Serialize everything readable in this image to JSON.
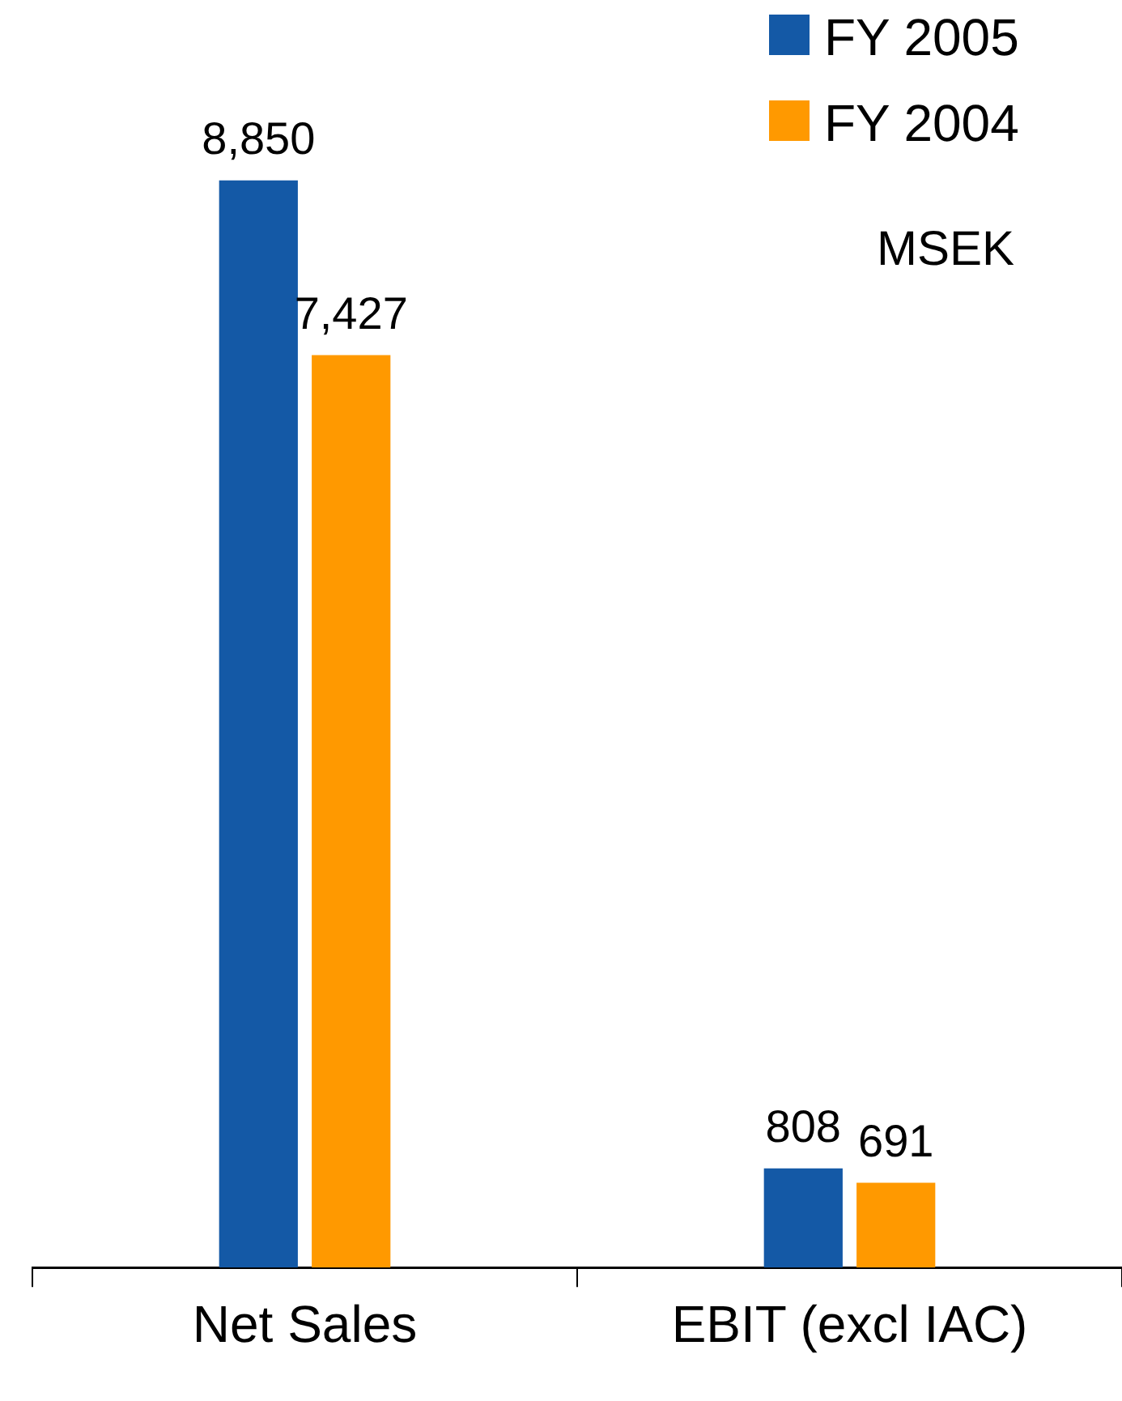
{
  "chart_data": {
    "type": "bar",
    "categories": [
      "Net Sales",
      "EBIT (excl IAC)"
    ],
    "series": [
      {
        "name": "FY 2005",
        "color": "#1459a6",
        "values": [
          8850,
          808
        ],
        "value_labels": [
          "8,850",
          "808"
        ]
      },
      {
        "name": "FY 2004",
        "color": "#ff9900",
        "values": [
          7427,
          691
        ],
        "value_labels": [
          "7,427",
          "691"
        ]
      }
    ],
    "legend": "top right",
    "annotations": [
      "MSEK"
    ]
  }
}
